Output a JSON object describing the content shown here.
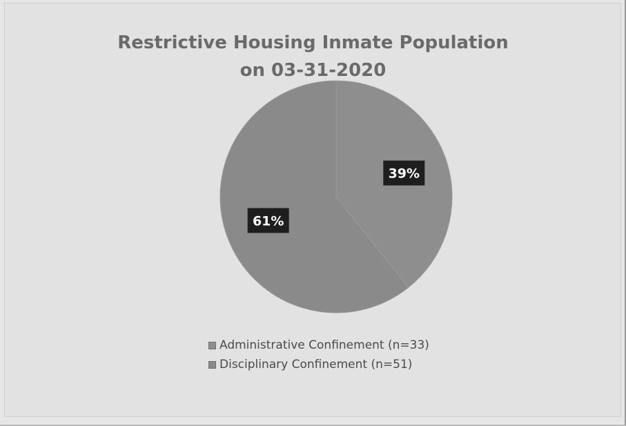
{
  "chart_data": {
    "type": "pie",
    "title": "Restrictive Housing Inmate Population on 03-31-2020",
    "title_lines": [
      "Restrictive Housing Inmate Population",
      "on 03-31-2020"
    ],
    "slices": [
      {
        "label": "Administrative Confinement (n=33)",
        "value": 33,
        "percent_label": "39%",
        "color": "#8e8e8e"
      },
      {
        "label": "Disciplinary Confinement (n=51)",
        "value": 51,
        "percent_label": "61%",
        "color": "#8a8a8a"
      }
    ],
    "legend_position": "bottom",
    "data_label_style": "dark boxes with white text"
  },
  "colors": {
    "background": "#e2e2e2",
    "data_label_box": "#1e1e1e",
    "data_label_text": "#ffffff",
    "title": "#6a6a6a"
  }
}
